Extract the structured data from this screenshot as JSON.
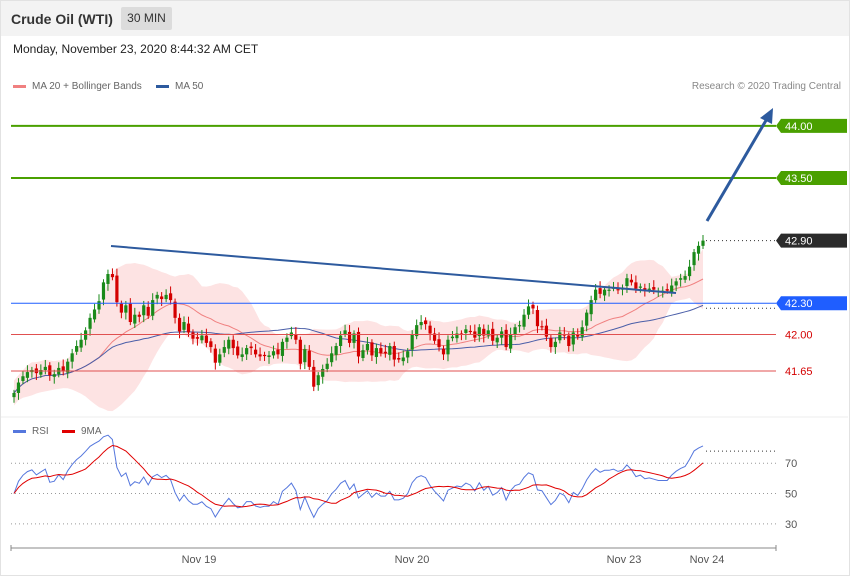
{
  "header": {
    "instrument": "Crude Oil (WTI)",
    "timeframe": "30 MIN",
    "datetime": "Monday, November 23, 2020 8:44:32 AM CET"
  },
  "legend": {
    "ma20": "MA 20 + Bollinger Bands",
    "ma50": "MA 50",
    "rsi": "RSI",
    "rsi_ma": "9MA",
    "copyright": "Research © 2020 Trading Central"
  },
  "colors": {
    "bullish": "#1a8a1a",
    "bearish": "#d40000",
    "resistance": "#4aa000",
    "pivot": "#1f5eff",
    "support": "#e05050",
    "trend": "#2d5a9e",
    "last": "#2b2b2b",
    "ma20": "#f08080",
    "ma50": "#4a5ea8",
    "bands": "#fde3e3",
    "rsi": "#5577dd",
    "rsi_ma": "#e00000"
  },
  "chart_data": [
    {
      "type": "candlestick",
      "ylim": [
        41.2,
        44.2
      ],
      "x_labels": [
        "Nov 19",
        "Nov 20",
        "Nov 23",
        "Nov 24"
      ],
      "levels": [
        {
          "value": 44.0,
          "label": "44.00",
          "kind": "resistance"
        },
        {
          "value": 43.5,
          "label": "43.50",
          "kind": "resistance"
        },
        {
          "value": 42.9,
          "label": "42.90",
          "kind": "last"
        },
        {
          "value": 42.3,
          "label": "42.30",
          "kind": "pivot"
        },
        {
          "value": 42.0,
          "label": "42.00",
          "kind": "support"
        },
        {
          "value": 41.65,
          "label": "41.65",
          "kind": "support"
        }
      ],
      "close": [
        41.44,
        41.54,
        41.6,
        41.64,
        41.66,
        41.63,
        41.66,
        41.69,
        41.61,
        41.62,
        41.68,
        41.65,
        41.74,
        41.82,
        41.89,
        41.95,
        42.04,
        42.16,
        42.24,
        42.32,
        42.5,
        42.58,
        42.55,
        42.31,
        42.21,
        42.28,
        42.12,
        42.19,
        42.17,
        42.28,
        42.18,
        42.33,
        42.38,
        42.34,
        42.38,
        42.33,
        42.16,
        42.03,
        42.12,
        42.02,
        41.96,
        41.96,
        41.99,
        41.92,
        41.88,
        41.73,
        41.81,
        41.88,
        41.95,
        41.87,
        41.8,
        41.81,
        41.87,
        41.87,
        41.81,
        41.79,
        41.8,
        41.8,
        41.84,
        41.81,
        41.93,
        41.97,
        42.02,
        41.95,
        41.72,
        41.86,
        41.69,
        41.5,
        41.61,
        41.67,
        41.72,
        41.82,
        41.89,
        41.99,
        42.04,
        41.92,
        42.01,
        41.79,
        41.85,
        41.91,
        41.8,
        41.87,
        41.82,
        41.82,
        41.89,
        41.76,
        41.76,
        41.78,
        41.84,
        42.0,
        42.09,
        42.12,
        42.1,
        42.01,
        41.94,
        41.88,
        41.81,
        41.95,
        41.98,
        42.01,
        42.0,
        42.05,
        42.03,
        41.97,
        42.07,
        41.99,
        42.04,
        41.94,
        41.97,
        42.03,
        41.88,
        42.0,
        42.07,
        42.09,
        42.19,
        42.27,
        42.25,
        42.08,
        42.07,
        41.98,
        41.88,
        41.93,
        42.02,
        41.99,
        41.89,
        42.02,
        41.98,
        42.07,
        42.21,
        42.33,
        42.43,
        42.39,
        42.43,
        42.43,
        42.45,
        42.43,
        42.45,
        42.54,
        42.5,
        42.44,
        42.46,
        42.43,
        42.44,
        42.43,
        42.42,
        42.42,
        42.42,
        42.47,
        42.51,
        42.54,
        42.56,
        42.65,
        42.79,
        42.85,
        42.9
      ],
      "ma20_end": 42.56,
      "ma50_end": 42.3,
      "rsi": {
        "ticks": [
          70,
          50,
          30
        ],
        "ylim": [
          22,
          82
        ],
        "rsi_last": 78,
        "ma_last": 70
      }
    }
  ]
}
